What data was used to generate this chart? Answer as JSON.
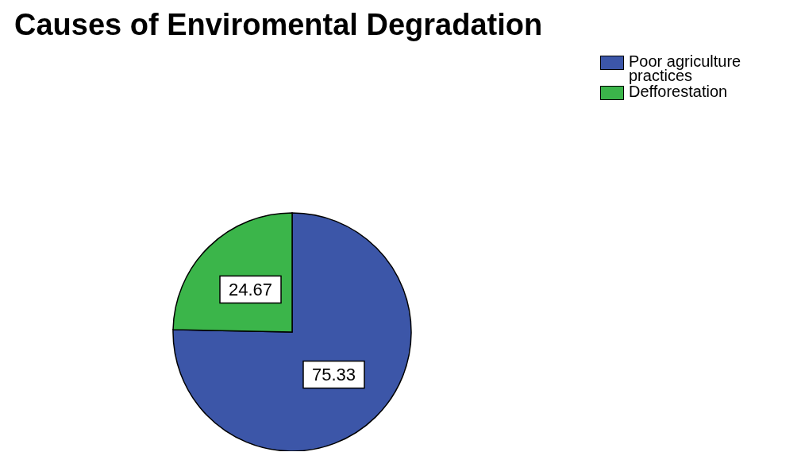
{
  "chart_data": {
    "type": "pie",
    "title": "Causes of Enviromental Degradation",
    "categories": [
      "Poor agriculture practices",
      "Defforestation"
    ],
    "values": [
      75.33,
      24.67
    ],
    "colors": [
      "#3c56a8",
      "#3bb54a"
    ],
    "data_labels": true,
    "legend": "top right"
  }
}
